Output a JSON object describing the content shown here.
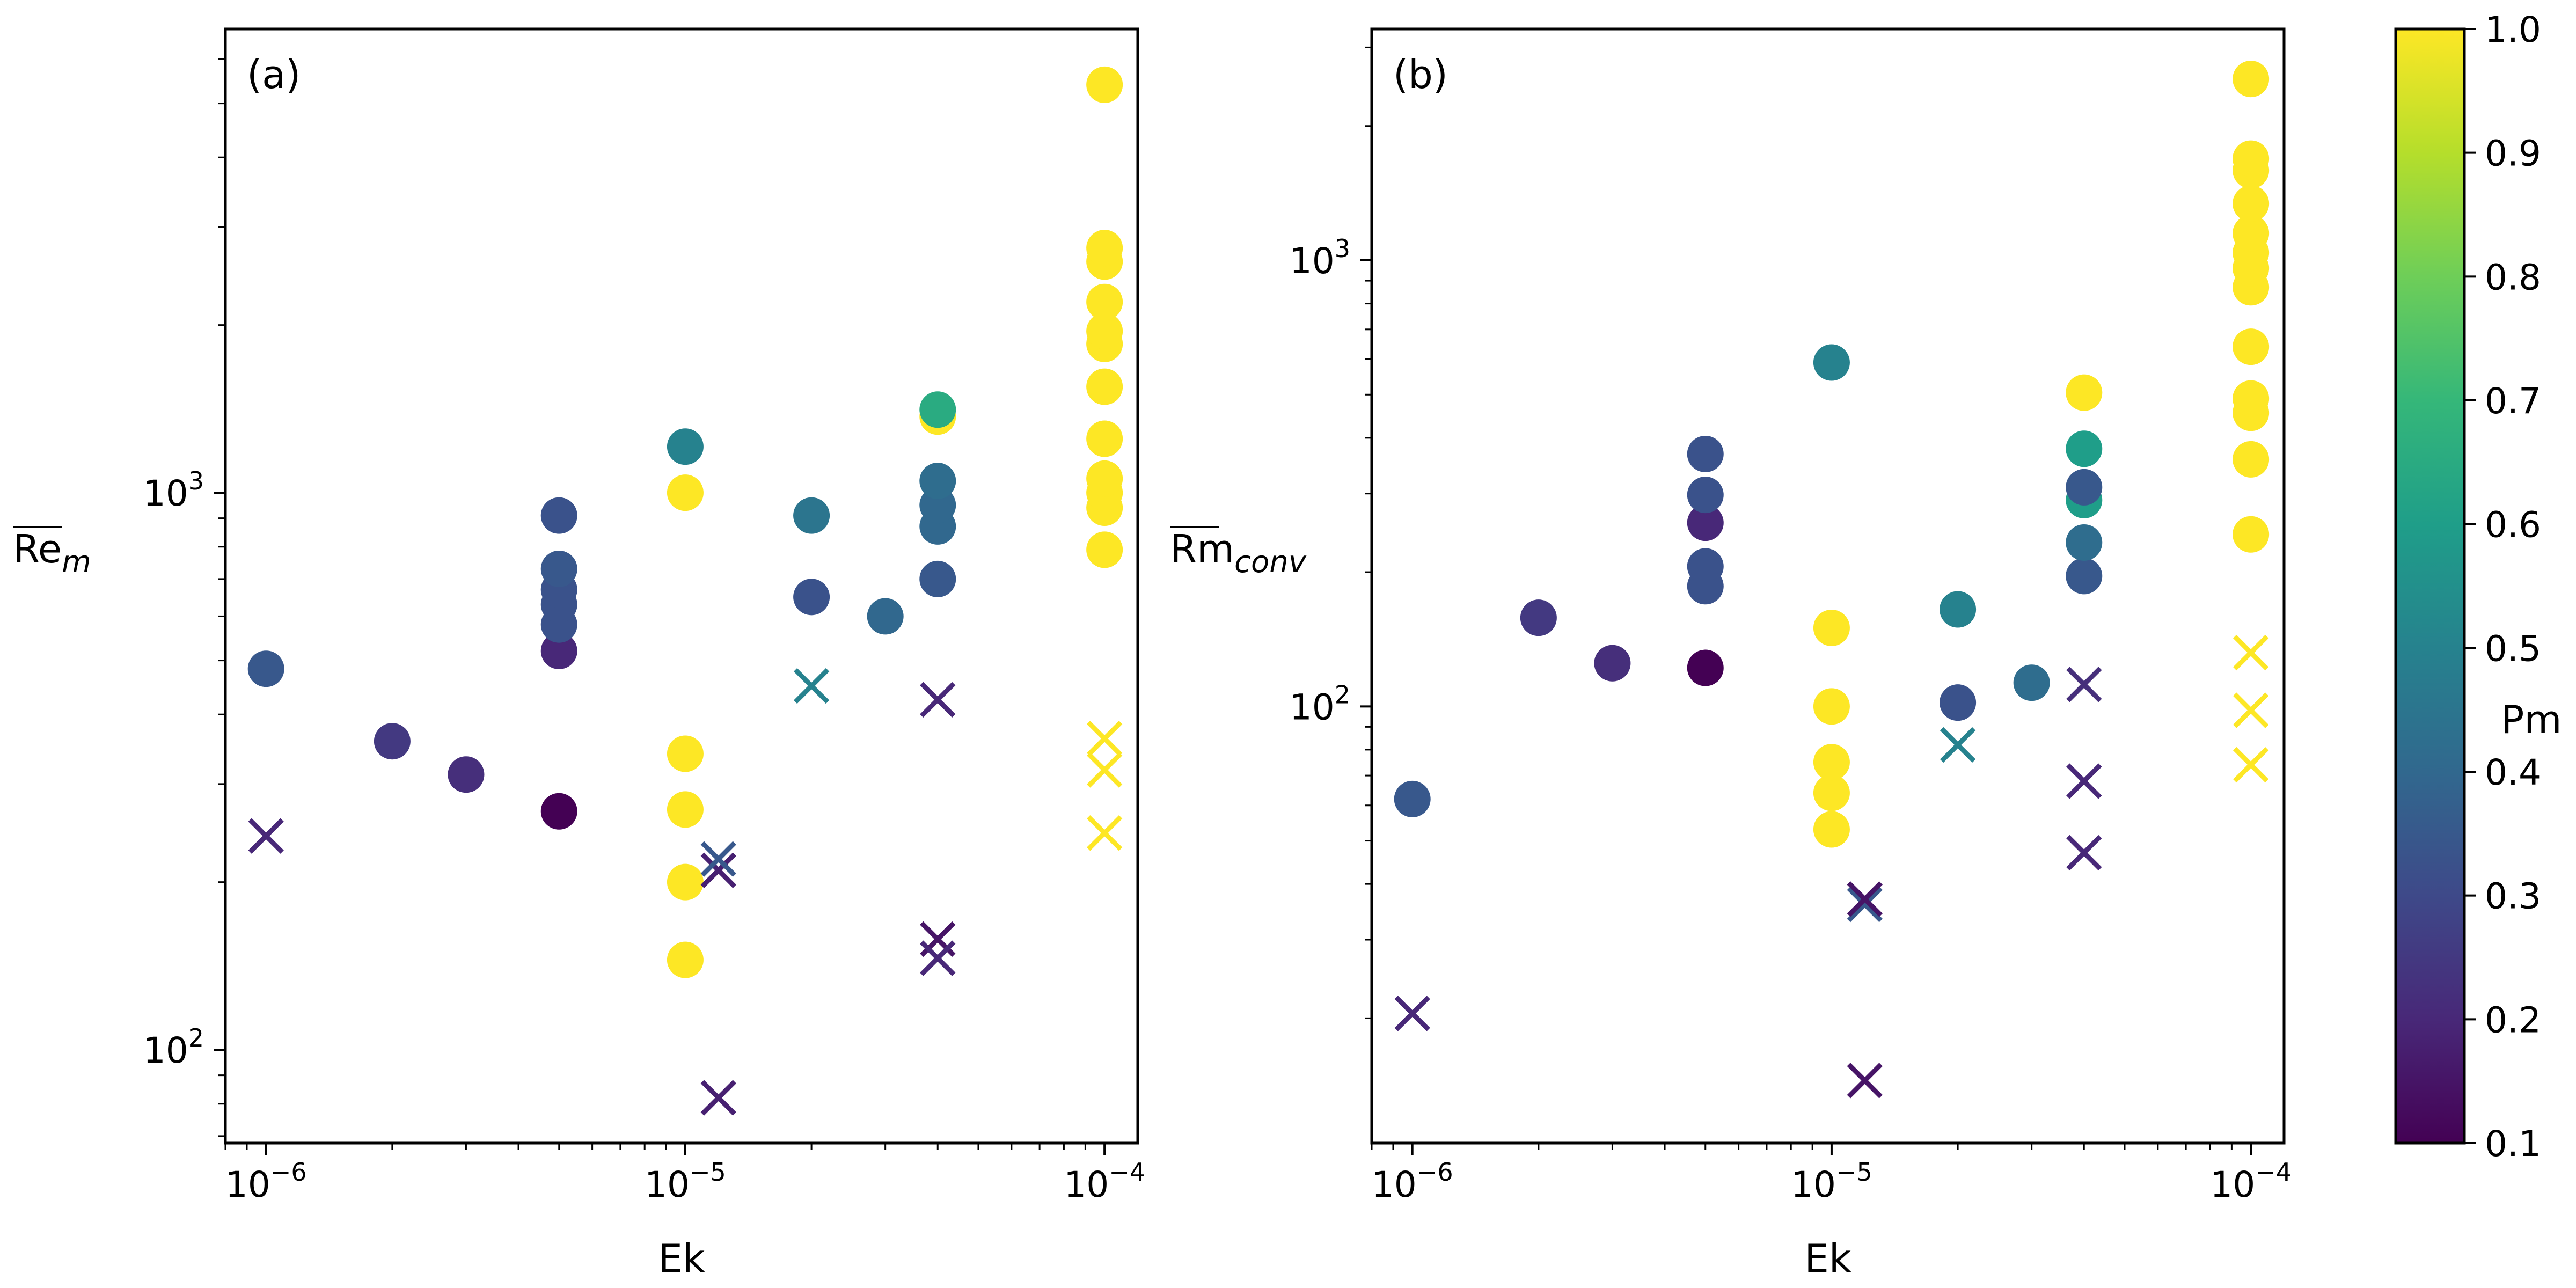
{
  "chart_data": [
    {
      "type": "scatter",
      "panel_label": "(a)",
      "xlabel": "Ek",
      "ylabel_main": "Re",
      "ylabel_sub": "m",
      "xscale": "log",
      "yscale": "log",
      "xlim": [
        8e-07,
        0.00012
      ],
      "ylim": [
        68,
        6800
      ],
      "x_ticks": [
        {
          "value": 1e-06,
          "base": "10",
          "exp": "−6"
        },
        {
          "value": 1e-05,
          "base": "10",
          "exp": "−5"
        },
        {
          "value": 0.0001,
          "base": "10",
          "exp": "−4"
        }
      ],
      "y_ticks": [
        {
          "value": 100,
          "base": "10",
          "exp": "2"
        },
        {
          "value": 1000,
          "base": "10",
          "exp": "3"
        }
      ],
      "series": [
        {
          "name": "circles",
          "marker": "o",
          "points": [
            {
              "x": 1e-06,
              "y": 483,
              "pm": 0.35
            },
            {
              "x": 2e-06,
              "y": 358,
              "pm": 0.25
            },
            {
              "x": 3e-06,
              "y": 312,
              "pm": 0.22
            },
            {
              "x": 5e-06,
              "y": 268,
              "pm": 0.1
            },
            {
              "x": 5e-06,
              "y": 520,
              "pm": 0.2
            },
            {
              "x": 5e-06,
              "y": 580,
              "pm": 0.33
            },
            {
              "x": 5e-06,
              "y": 630,
              "pm": 0.33
            },
            {
              "x": 5e-06,
              "y": 670,
              "pm": 0.33
            },
            {
              "x": 5e-06,
              "y": 730,
              "pm": 0.35
            },
            {
              "x": 5e-06,
              "y": 910,
              "pm": 0.33
            },
            {
              "x": 1e-05,
              "y": 145,
              "pm": 1.0
            },
            {
              "x": 1e-05,
              "y": 200,
              "pm": 1.0
            },
            {
              "x": 1e-05,
              "y": 270,
              "pm": 1.0
            },
            {
              "x": 1e-05,
              "y": 340,
              "pm": 1.0
            },
            {
              "x": 1e-05,
              "y": 1000,
              "pm": 1.0
            },
            {
              "x": 1e-05,
              "y": 1210,
              "pm": 0.5
            },
            {
              "x": 2e-05,
              "y": 650,
              "pm": 0.33
            },
            {
              "x": 2e-05,
              "y": 910,
              "pm": 0.45
            },
            {
              "x": 3e-05,
              "y": 600,
              "pm": 0.4
            },
            {
              "x": 4e-05,
              "y": 700,
              "pm": 0.35
            },
            {
              "x": 4e-05,
              "y": 870,
              "pm": 0.4
            },
            {
              "x": 4e-05,
              "y": 950,
              "pm": 0.4
            },
            {
              "x": 4e-05,
              "y": 1050,
              "pm": 0.42
            },
            {
              "x": 4e-05,
              "y": 1370,
              "pm": 1.0
            },
            {
              "x": 4e-05,
              "y": 1410,
              "pm": 0.65
            },
            {
              "x": 0.0001,
              "y": 790,
              "pm": 1.0
            },
            {
              "x": 0.0001,
              "y": 940,
              "pm": 1.0
            },
            {
              "x": 0.0001,
              "y": 1000,
              "pm": 1.0
            },
            {
              "x": 0.0001,
              "y": 1060,
              "pm": 1.0
            },
            {
              "x": 0.0001,
              "y": 1250,
              "pm": 1.0
            },
            {
              "x": 0.0001,
              "y": 1550,
              "pm": 1.0
            },
            {
              "x": 0.0001,
              "y": 1850,
              "pm": 1.0
            },
            {
              "x": 0.0001,
              "y": 1950,
              "pm": 1.0
            },
            {
              "x": 0.0001,
              "y": 2200,
              "pm": 1.0
            },
            {
              "x": 0.0001,
              "y": 2600,
              "pm": 1.0
            },
            {
              "x": 0.0001,
              "y": 2750,
              "pm": 1.0
            },
            {
              "x": 0.0001,
              "y": 5400,
              "pm": 1.0
            }
          ]
        },
        {
          "name": "crosses",
          "marker": "x",
          "points": [
            {
              "x": 1e-06,
              "y": 242,
              "pm": 0.2
            },
            {
              "x": 1.2e-05,
              "y": 210,
              "pm": 0.18
            },
            {
              "x": 1.2e-05,
              "y": 220,
              "pm": 0.35
            },
            {
              "x": 1.2e-05,
              "y": 82,
              "pm": 0.18
            },
            {
              "x": 2e-05,
              "y": 450,
              "pm": 0.5
            },
            {
              "x": 4e-05,
              "y": 425,
              "pm": 0.2
            },
            {
              "x": 4e-05,
              "y": 158,
              "pm": 0.15
            },
            {
              "x": 4e-05,
              "y": 146,
              "pm": 0.2
            },
            {
              "x": 0.0001,
              "y": 245,
              "pm": 1.0
            },
            {
              "x": 0.0001,
              "y": 318,
              "pm": 1.0
            },
            {
              "x": 0.0001,
              "y": 362,
              "pm": 1.0
            }
          ]
        }
      ]
    },
    {
      "type": "scatter",
      "panel_label": "(b)",
      "xlabel": "Ek",
      "ylabel_main": "Rm",
      "ylabel_sub": "conv",
      "xscale": "log",
      "yscale": "log",
      "xlim": [
        8e-07,
        0.00012
      ],
      "ylim": [
        10.5,
        3300
      ],
      "x_ticks": [
        {
          "value": 1e-06,
          "base": "10",
          "exp": "−6"
        },
        {
          "value": 1e-05,
          "base": "10",
          "exp": "−5"
        },
        {
          "value": 0.0001,
          "base": "10",
          "exp": "−4"
        }
      ],
      "y_ticks": [
        {
          "value": 100,
          "base": "10",
          "exp": "2"
        },
        {
          "value": 1000,
          "base": "10",
          "exp": "3"
        }
      ],
      "series": [
        {
          "name": "circles",
          "marker": "o",
          "points": [
            {
              "x": 1e-06,
              "y": 62,
              "pm": 0.35
            },
            {
              "x": 2e-06,
              "y": 158,
              "pm": 0.25
            },
            {
              "x": 3e-06,
              "y": 125,
              "pm": 0.22
            },
            {
              "x": 5e-06,
              "y": 122,
              "pm": 0.1
            },
            {
              "x": 5e-06,
              "y": 186,
              "pm": 0.33
            },
            {
              "x": 5e-06,
              "y": 206,
              "pm": 0.33
            },
            {
              "x": 5e-06,
              "y": 258,
              "pm": 0.2
            },
            {
              "x": 5e-06,
              "y": 298,
              "pm": 0.33
            },
            {
              "x": 5e-06,
              "y": 368,
              "pm": 0.33
            },
            {
              "x": 1e-05,
              "y": 53,
              "pm": 1.0
            },
            {
              "x": 1e-05,
              "y": 64,
              "pm": 1.0
            },
            {
              "x": 1e-05,
              "y": 75,
              "pm": 1.0
            },
            {
              "x": 1e-05,
              "y": 100,
              "pm": 1.0
            },
            {
              "x": 1e-05,
              "y": 150,
              "pm": 1.0
            },
            {
              "x": 1e-05,
              "y": 590,
              "pm": 0.5
            },
            {
              "x": 2e-05,
              "y": 102,
              "pm": 0.33
            },
            {
              "x": 2e-05,
              "y": 165,
              "pm": 0.5
            },
            {
              "x": 3e-05,
              "y": 113,
              "pm": 0.42
            },
            {
              "x": 4e-05,
              "y": 196,
              "pm": 0.35
            },
            {
              "x": 4e-05,
              "y": 233,
              "pm": 0.42
            },
            {
              "x": 4e-05,
              "y": 290,
              "pm": 0.6
            },
            {
              "x": 4e-05,
              "y": 310,
              "pm": 0.35
            },
            {
              "x": 4e-05,
              "y": 378,
              "pm": 0.6
            },
            {
              "x": 4e-05,
              "y": 505,
              "pm": 1.0
            },
            {
              "x": 0.0001,
              "y": 243,
              "pm": 1.0
            },
            {
              "x": 0.0001,
              "y": 358,
              "pm": 1.0
            },
            {
              "x": 0.0001,
              "y": 455,
              "pm": 1.0
            },
            {
              "x": 0.0001,
              "y": 490,
              "pm": 1.0
            },
            {
              "x": 0.0001,
              "y": 640,
              "pm": 1.0
            },
            {
              "x": 0.0001,
              "y": 870,
              "pm": 1.0
            },
            {
              "x": 0.0001,
              "y": 960,
              "pm": 1.0
            },
            {
              "x": 0.0001,
              "y": 1040,
              "pm": 1.0
            },
            {
              "x": 0.0001,
              "y": 1150,
              "pm": 1.0
            },
            {
              "x": 0.0001,
              "y": 1340,
              "pm": 1.0
            },
            {
              "x": 0.0001,
              "y": 1590,
              "pm": 1.0
            },
            {
              "x": 0.0001,
              "y": 1690,
              "pm": 1.0
            },
            {
              "x": 0.0001,
              "y": 2550,
              "pm": 1.0
            }
          ]
        },
        {
          "name": "crosses",
          "marker": "x",
          "points": [
            {
              "x": 1e-06,
              "y": 20.5,
              "pm": 0.2
            },
            {
              "x": 1.2e-05,
              "y": 36,
              "pm": 0.35
            },
            {
              "x": 1.2e-05,
              "y": 37,
              "pm": 0.15
            },
            {
              "x": 1.2e-05,
              "y": 14.5,
              "pm": 0.15
            },
            {
              "x": 2e-05,
              "y": 82,
              "pm": 0.5
            },
            {
              "x": 4e-05,
              "y": 47,
              "pm": 0.2
            },
            {
              "x": 4e-05,
              "y": 68,
              "pm": 0.2
            },
            {
              "x": 4e-05,
              "y": 112,
              "pm": 0.22
            },
            {
              "x": 0.0001,
              "y": 74,
              "pm": 1.0
            },
            {
              "x": 0.0001,
              "y": 98,
              "pm": 1.0
            },
            {
              "x": 0.0001,
              "y": 132,
              "pm": 1.0
            }
          ]
        }
      ]
    }
  ],
  "colorbar": {
    "label": "Pm",
    "colormap": "viridis",
    "range": [
      0.1,
      1.0
    ],
    "ticks": [
      "0.1",
      "0.2",
      "0.3",
      "0.4",
      "0.5",
      "0.6",
      "0.7",
      "0.8",
      "0.9",
      "1.0"
    ]
  },
  "colors": {
    "viridis": [
      "#440154",
      "#482878",
      "#3e4989",
      "#31688e",
      "#26828e",
      "#1f9e89",
      "#35b779",
      "#6ece58",
      "#b5de2b",
      "#fde725"
    ]
  }
}
